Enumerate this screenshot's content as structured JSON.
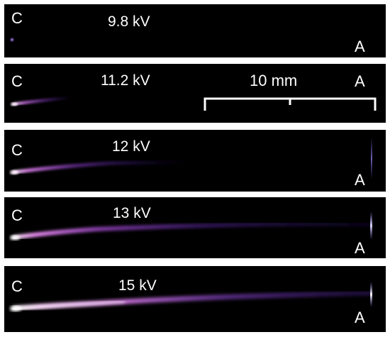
{
  "panels": [
    {
      "voltage": "9.8 kV",
      "cathode_label": "C",
      "anode_label": "A",
      "discharge_intensity": 0.05
    },
    {
      "voltage": "11.2 kV",
      "cathode_label": "C",
      "anode_label": "A",
      "discharge_intensity": 0.35
    },
    {
      "voltage": "12 kV",
      "cathode_label": "C",
      "anode_label": "A",
      "discharge_intensity": 0.55
    },
    {
      "voltage": "13 kV",
      "cathode_label": "C",
      "anode_label": "A",
      "discharge_intensity": 0.75
    },
    {
      "voltage": "15 kV",
      "cathode_label": "C",
      "anode_label": "A",
      "discharge_intensity": 1.0
    }
  ],
  "scale_bar": {
    "label": "10 mm"
  },
  "colors": {
    "background": "#000000",
    "frame": "#ffffff",
    "text": "#ffffff",
    "glow_core": "#ffe4ff",
    "glow_mid": "#d070e8",
    "glow_outer": "#6a2bb0"
  }
}
